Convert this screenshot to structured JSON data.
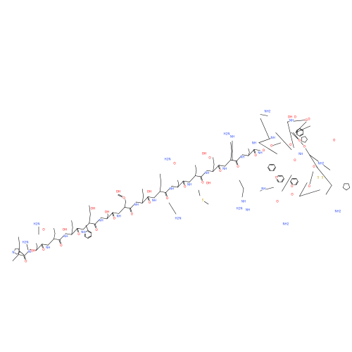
{
  "colors": {
    "bond": "#000000",
    "oxygen": "#ff0d0d",
    "nitrogen": "#3050f8",
    "sulfur": "#c8a000",
    "background": "#ffffff"
  },
  "atom_labels": {
    "oxygen": "O",
    "hydroxyl": "OH",
    "amide_nh": "NH",
    "amine_nh2": "NH2",
    "amine_h2n": "H2N",
    "imine": "NH",
    "sulfur": "S",
    "imidazole_n": "N"
  }
}
